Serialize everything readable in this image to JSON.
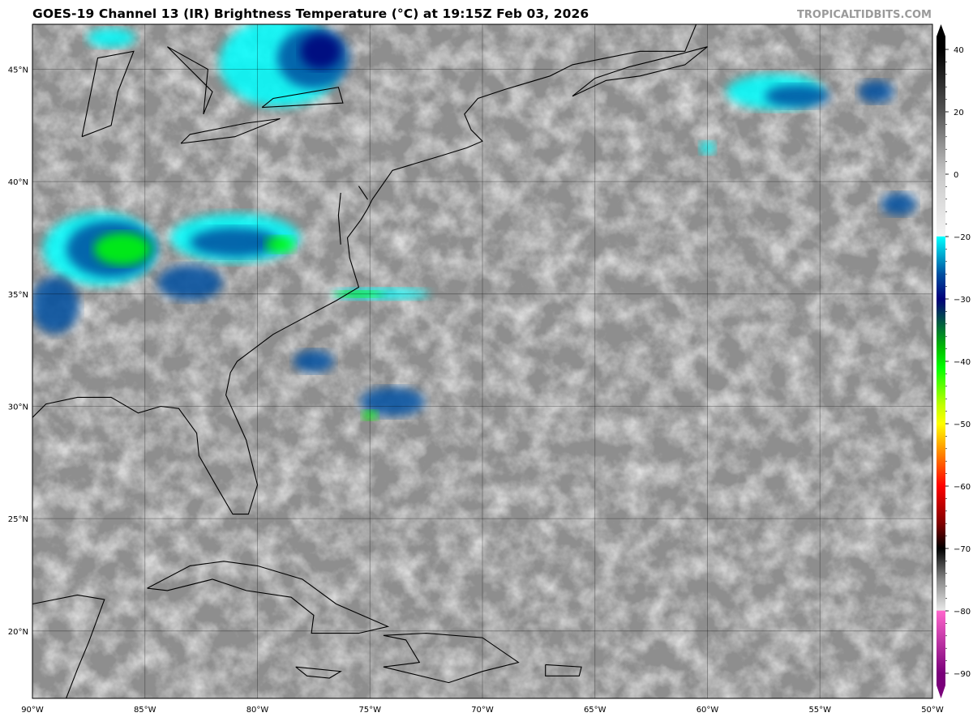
{
  "header": {
    "title": "GOES-19 Channel 13 (IR) Brightness Temperature (°C) at 19:15Z Feb 03, 2026",
    "watermark": "TROPICALTIDBITS.COM"
  },
  "map": {
    "extent_lon": [
      -90,
      -50
    ],
    "extent_lat": [
      17,
      47
    ],
    "lat_labels": [
      {
        "lat": 45,
        "label": "45°N"
      },
      {
        "lat": 40,
        "label": "40°N"
      },
      {
        "lat": 35,
        "label": "35°N"
      },
      {
        "lat": 30,
        "label": "30°N"
      },
      {
        "lat": 25,
        "label": "25°N"
      },
      {
        "lat": 20,
        "label": "20°N"
      }
    ],
    "lon_labels": [
      {
        "lon": -90,
        "label": "90°W"
      },
      {
        "lon": -85,
        "label": "85°W"
      },
      {
        "lon": -80,
        "label": "80°W"
      },
      {
        "lon": -75,
        "label": "75°W"
      },
      {
        "lon": -70,
        "label": "70°W"
      },
      {
        "lon": -65,
        "label": "65°W"
      },
      {
        "lon": -60,
        "label": "60°W"
      },
      {
        "lon": -55,
        "label": "55°W"
      },
      {
        "lon": -50,
        "label": "50°W"
      }
    ]
  },
  "colorbar": {
    "unit": "°C",
    "range": [
      -90,
      40
    ],
    "ticks": [
      "40",
      "20",
      "0",
      "−20",
      "−30",
      "−40",
      "−50",
      "−60",
      "−70",
      "−80",
      "−90"
    ],
    "tick_values": [
      40,
      20,
      0,
      -20,
      -30,
      -40,
      -50,
      -60,
      -70,
      -80,
      -90
    ],
    "colors": {
      "warm": "#000000",
      "neutral": "#d8d8d8",
      "cold_start": "#00ffff",
      "blue": "#0050a0",
      "navy": "#00007a",
      "green": "#00ff00",
      "yellow": "#ffff00",
      "orange": "#ff8000",
      "red": "#ff0000",
      "black": "#000000",
      "magenta": "#ff66cc",
      "purple": "#7a007a"
    }
  }
}
